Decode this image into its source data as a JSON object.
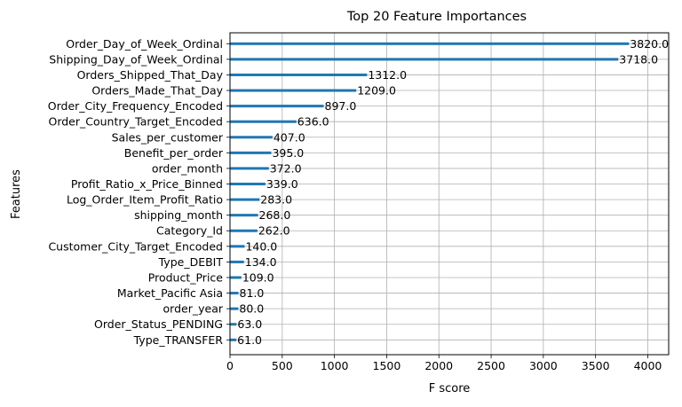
{
  "chart_data": {
    "type": "bar",
    "orientation": "horizontal",
    "title": "Top 20 Feature Importances",
    "xlabel": "F score",
    "ylabel": "Features",
    "xlim": [
      0,
      4200
    ],
    "xticks": [
      0,
      500,
      1000,
      1500,
      2000,
      2500,
      3000,
      3500,
      4000
    ],
    "grid": true,
    "bar_color": "#1f77b4",
    "categories": [
      "Order_Day_of_Week_Ordinal",
      "Shipping_Day_of_Week_Ordinal",
      "Orders_Shipped_That_Day",
      "Orders_Made_That_Day",
      "Order_City_Frequency_Encoded",
      "Order_Country_Target_Encoded",
      "Sales_per_customer",
      "Benefit_per_order",
      "order_month",
      "Profit_Ratio_x_Price_Binned",
      "Log_Order_Item_Profit_Ratio",
      "shipping_month",
      "Category_Id",
      "Customer_City_Target_Encoded",
      "Type_DEBIT",
      "Product_Price",
      "Market_Pacific Asia",
      "order_year",
      "Order_Status_PENDING",
      "Type_TRANSFER"
    ],
    "values": [
      3820,
      3718,
      1312,
      1209,
      897,
      636,
      407,
      395,
      372,
      339,
      283,
      268,
      262,
      140,
      134,
      109,
      81,
      80,
      63,
      61
    ],
    "value_labels": [
      "3820.0",
      "3718.0",
      "1312.0",
      "1209.0",
      "897.0",
      "636.0",
      "407.0",
      "395.0",
      "372.0",
      "339.0",
      "283.0",
      "268.0",
      "262.0",
      "140.0",
      "134.0",
      "109.0",
      "81.0",
      "80.0",
      "63.0",
      "61.0"
    ]
  }
}
